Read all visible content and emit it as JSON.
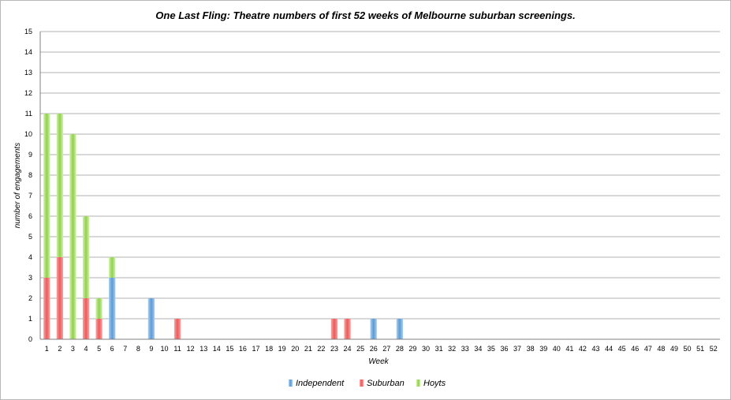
{
  "chart_data": {
    "type": "bar",
    "stacked": true,
    "title": "One Last Fling: Theatre numbers of first 52 weeks of Melbourne suburban screenings.",
    "xlabel": "Week",
    "ylabel": "number of engagements",
    "ylim": [
      0,
      15
    ],
    "yticks": [
      "0",
      "1",
      "2",
      "3",
      "4",
      "5",
      "6",
      "7",
      "8",
      "9",
      "10",
      "11",
      "12",
      "13",
      "14",
      "15"
    ],
    "grid": true,
    "legend_position": "bottom",
    "categories": [
      "1",
      "2",
      "3",
      "4",
      "5",
      "6",
      "7",
      "8",
      "9",
      "10",
      "11",
      "12",
      "13",
      "14",
      "15",
      "16",
      "17",
      "18",
      "19",
      "20",
      "21",
      "22",
      "23",
      "24",
      "25",
      "26",
      "27",
      "28",
      "29",
      "30",
      "31",
      "32",
      "33",
      "34",
      "35",
      "36",
      "37",
      "38",
      "39",
      "40",
      "41",
      "42",
      "43",
      "44",
      "45",
      "46",
      "47",
      "48",
      "49",
      "50",
      "51",
      "52"
    ],
    "series": [
      {
        "name": "Independent",
        "color": "#5b9bd5",
        "values": [
          0,
          0,
          0,
          0,
          0,
          3,
          0,
          0,
          2,
          0,
          0,
          0,
          0,
          0,
          0,
          0,
          0,
          0,
          0,
          0,
          0,
          0,
          0,
          0,
          0,
          1,
          0,
          1,
          0,
          0,
          0,
          0,
          0,
          0,
          0,
          0,
          0,
          0,
          0,
          0,
          0,
          0,
          0,
          0,
          0,
          0,
          0,
          0,
          0,
          0,
          0,
          0
        ]
      },
      {
        "name": "Suburban",
        "color": "#ef5a5a",
        "values": [
          3,
          4,
          0,
          2,
          1,
          0,
          0,
          0,
          0,
          0,
          1,
          0,
          0,
          0,
          0,
          0,
          0,
          0,
          0,
          0,
          0,
          0,
          1,
          1,
          0,
          0,
          0,
          0,
          0,
          0,
          0,
          0,
          0,
          0,
          0,
          0,
          0,
          0,
          0,
          0,
          0,
          0,
          0,
          0,
          0,
          0,
          0,
          0,
          0,
          0,
          0,
          0
        ]
      },
      {
        "name": "Hoyts",
        "color": "#8fd14f",
        "values": [
          8,
          7,
          10,
          4,
          1,
          1,
          0,
          0,
          0,
          0,
          0,
          0,
          0,
          0,
          0,
          0,
          0,
          0,
          0,
          0,
          0,
          0,
          0,
          0,
          0,
          0,
          0,
          0,
          0,
          0,
          0,
          0,
          0,
          0,
          0,
          0,
          0,
          0,
          0,
          0,
          0,
          0,
          0,
          0,
          0,
          0,
          0,
          0,
          0,
          0,
          0,
          0
        ]
      }
    ]
  }
}
